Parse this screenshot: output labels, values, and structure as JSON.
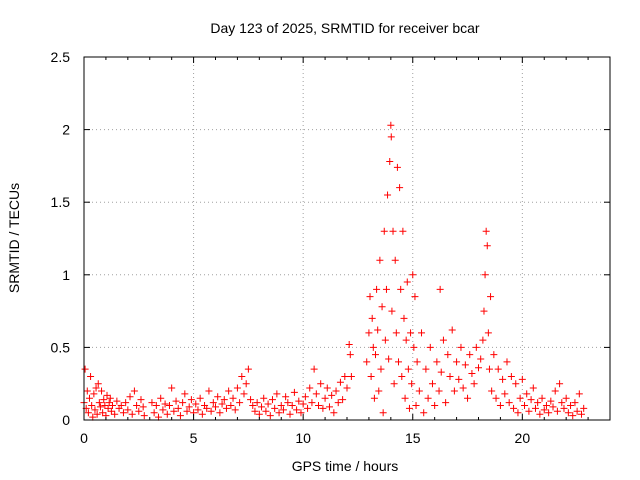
{
  "chart_data": {
    "type": "scatter",
    "title": "Day 123 of 2025, SRMTID for receiver bcar",
    "xlabel": "GPS time / hours",
    "ylabel": "SRMTID / TECUs",
    "xlim": [
      0,
      24
    ],
    "ylim": [
      0,
      2.5
    ],
    "x_ticks": [
      0,
      5,
      10,
      15,
      20
    ],
    "x_tick_labels": [
      "0",
      "5",
      "10",
      "15",
      "20"
    ],
    "y_ticks": [
      0,
      0.5,
      1,
      1.5,
      2,
      2.5
    ],
    "y_tick_labels": [
      "0",
      "0.5",
      "1",
      "1.5",
      "2",
      "2.5"
    ],
    "grid": true,
    "marker": "+",
    "color": "#ff0000",
    "series": [
      {
        "name": "SRMTID",
        "points": [
          [
            0.0,
            0.12
          ],
          [
            0.05,
            0.35
          ],
          [
            0.1,
            0.08
          ],
          [
            0.15,
            0.2
          ],
          [
            0.2,
            0.05
          ],
          [
            0.25,
            0.15
          ],
          [
            0.3,
            0.3
          ],
          [
            0.35,
            0.1
          ],
          [
            0.4,
            0.02
          ],
          [
            0.45,
            0.18
          ],
          [
            0.5,
            0.07
          ],
          [
            0.55,
            0.22
          ],
          [
            0.6,
            0.04
          ],
          [
            0.65,
            0.25
          ],
          [
            0.7,
            0.12
          ],
          [
            0.75,
            0.09
          ],
          [
            0.8,
            0.2
          ],
          [
            0.85,
            0.05
          ],
          [
            0.9,
            0.14
          ],
          [
            0.95,
            0.1
          ],
          [
            1.0,
            0.03
          ],
          [
            1.05,
            0.17
          ],
          [
            1.1,
            0.08
          ],
          [
            1.15,
            0.12
          ],
          [
            1.2,
            0.15
          ],
          [
            1.25,
            0.06
          ],
          [
            1.3,
            0.1
          ],
          [
            1.4,
            0.04
          ],
          [
            1.5,
            0.13
          ],
          [
            1.6,
            0.08
          ],
          [
            1.7,
            0.1
          ],
          [
            1.8,
            0.05
          ],
          [
            1.9,
            0.12
          ],
          [
            2.0,
            0.07
          ],
          [
            2.1,
            0.16
          ],
          [
            2.2,
            0.04
          ],
          [
            2.3,
            0.2
          ],
          [
            2.4,
            0.1
          ],
          [
            2.5,
            0.06
          ],
          [
            2.6,
            0.14
          ],
          [
            2.7,
            0.09
          ],
          [
            2.75,
            0.03
          ],
          [
            3.1,
            0.12
          ],
          [
            3.2,
            0.05
          ],
          [
            3.3,
            0.1
          ],
          [
            3.4,
            0.02
          ],
          [
            3.5,
            0.15
          ],
          [
            3.6,
            0.07
          ],
          [
            3.7,
            0.11
          ],
          [
            3.8,
            0.04
          ],
          [
            3.9,
            0.1
          ],
          [
            4.0,
            0.22
          ],
          [
            4.1,
            0.06
          ],
          [
            4.2,
            0.13
          ],
          [
            4.3,
            0.08
          ],
          [
            4.4,
            0.03
          ],
          [
            4.5,
            0.12
          ],
          [
            4.6,
            0.18
          ],
          [
            4.7,
            0.06
          ],
          [
            4.8,
            0.09
          ],
          [
            4.9,
            0.14
          ],
          [
            5.0,
            0.05
          ],
          [
            5.1,
            0.11
          ],
          [
            5.2,
            0.07
          ],
          [
            5.3,
            0.15
          ],
          [
            5.4,
            0.04
          ],
          [
            5.5,
            0.1
          ],
          [
            5.6,
            0.08
          ],
          [
            5.7,
            0.2
          ],
          [
            5.8,
            0.06
          ],
          [
            5.9,
            0.12
          ],
          [
            6.0,
            0.09
          ],
          [
            6.1,
            0.16
          ],
          [
            6.2,
            0.05
          ],
          [
            6.3,
            0.11
          ],
          [
            6.4,
            0.14
          ],
          [
            6.5,
            0.08
          ],
          [
            6.6,
            0.2
          ],
          [
            6.7,
            0.1
          ],
          [
            6.8,
            0.15
          ],
          [
            6.9,
            0.07
          ],
          [
            7.0,
            0.22
          ],
          [
            7.1,
            0.12
          ],
          [
            7.2,
            0.3
          ],
          [
            7.3,
            0.18
          ],
          [
            7.4,
            0.25
          ],
          [
            7.5,
            0.35
          ],
          [
            7.6,
            0.14
          ],
          [
            7.7,
            0.1
          ],
          [
            7.8,
            0.06
          ],
          [
            7.9,
            0.12
          ],
          [
            8.0,
            0.04
          ],
          [
            8.1,
            0.09
          ],
          [
            8.2,
            0.15
          ],
          [
            8.3,
            0.06
          ],
          [
            8.4,
            0.11
          ],
          [
            8.5,
            0.03
          ],
          [
            8.6,
            0.14
          ],
          [
            8.7,
            0.08
          ],
          [
            8.8,
            0.18
          ],
          [
            8.9,
            0.05
          ],
          [
            9.0,
            0.1
          ],
          [
            9.1,
            0.07
          ],
          [
            9.2,
            0.16
          ],
          [
            9.3,
            0.12
          ],
          [
            9.4,
            0.04
          ],
          [
            9.5,
            0.1
          ],
          [
            9.6,
            0.19
          ],
          [
            9.7,
            0.07
          ],
          [
            9.8,
            0.13
          ],
          [
            9.9,
            0.05
          ],
          [
            10.0,
            0.11
          ],
          [
            10.1,
            0.16
          ],
          [
            10.2,
            0.08
          ],
          [
            10.3,
            0.22
          ],
          [
            10.4,
            0.12
          ],
          [
            10.5,
            0.35
          ],
          [
            10.6,
            0.18
          ],
          [
            10.7,
            0.1
          ],
          [
            10.8,
            0.25
          ],
          [
            10.9,
            0.08
          ],
          [
            11.0,
            0.15
          ],
          [
            11.1,
            0.22
          ],
          [
            11.2,
            0.09
          ],
          [
            11.3,
            0.17
          ],
          [
            11.4,
            0.05
          ],
          [
            11.5,
            0.2
          ],
          [
            11.6,
            0.12
          ],
          [
            11.7,
            0.26
          ],
          [
            11.8,
            0.14
          ],
          [
            11.9,
            0.3
          ],
          [
            12.0,
            0.22
          ],
          [
            12.1,
            0.52
          ],
          [
            12.15,
            0.45
          ],
          [
            12.2,
            0.3
          ],
          [
            12.9,
            0.4
          ],
          [
            13.0,
            0.6
          ],
          [
            13.05,
            0.85
          ],
          [
            13.1,
            0.3
          ],
          [
            13.15,
            0.7
          ],
          [
            13.2,
            0.5
          ],
          [
            13.25,
            0.15
          ],
          [
            13.3,
            0.45
          ],
          [
            13.35,
            0.9
          ],
          [
            13.4,
            0.62
          ],
          [
            13.45,
            0.2
          ],
          [
            13.5,
            1.1
          ],
          [
            13.55,
            0.35
          ],
          [
            13.6,
            0.78
          ],
          [
            13.65,
            0.05
          ],
          [
            13.7,
            1.3
          ],
          [
            13.75,
            0.55
          ],
          [
            13.8,
            0.9
          ],
          [
            13.85,
            1.55
          ],
          [
            13.9,
            0.42
          ],
          [
            13.95,
            1.78
          ],
          [
            14.0,
            2.03
          ],
          [
            14.02,
            1.95
          ],
          [
            14.05,
            0.75
          ],
          [
            14.1,
            1.3
          ],
          [
            14.15,
            0.25
          ],
          [
            14.2,
            1.1
          ],
          [
            14.25,
            0.6
          ],
          [
            14.3,
            1.74
          ],
          [
            14.35,
            0.4
          ],
          [
            14.4,
            1.6
          ],
          [
            14.45,
            0.9
          ],
          [
            14.5,
            0.3
          ],
          [
            14.55,
            1.3
          ],
          [
            14.6,
            0.7
          ],
          [
            14.65,
            0.15
          ],
          [
            14.7,
            0.55
          ],
          [
            14.75,
            0.95
          ],
          [
            14.8,
            0.35
          ],
          [
            14.85,
            0.08
          ],
          [
            14.9,
            0.6
          ],
          [
            14.95,
            0.25
          ],
          [
            15.0,
            1.0
          ],
          [
            15.05,
            0.5
          ],
          [
            15.1,
            0.85
          ],
          [
            15.15,
            0.1
          ],
          [
            15.2,
            0.4
          ],
          [
            15.3,
            0.2
          ],
          [
            15.4,
            0.6
          ],
          [
            15.5,
            0.05
          ],
          [
            15.6,
            0.35
          ],
          [
            15.7,
            0.15
          ],
          [
            15.8,
            0.5
          ],
          [
            15.9,
            0.25
          ],
          [
            16.0,
            0.1
          ],
          [
            16.1,
            0.4
          ],
          [
            16.2,
            0.2
          ],
          [
            16.25,
            0.9
          ],
          [
            16.3,
            0.33
          ],
          [
            16.4,
            0.55
          ],
          [
            16.5,
            0.12
          ],
          [
            16.6,
            0.45
          ],
          [
            16.7,
            0.3
          ],
          [
            16.8,
            0.62
          ],
          [
            16.9,
            0.2
          ],
          [
            17.0,
            0.4
          ],
          [
            17.1,
            0.28
          ],
          [
            17.2,
            0.5
          ],
          [
            17.3,
            0.22
          ],
          [
            17.4,
            0.38
          ],
          [
            17.5,
            0.15
          ],
          [
            17.6,
            0.45
          ],
          [
            17.7,
            0.32
          ],
          [
            17.8,
            0.25
          ],
          [
            17.9,
            0.5
          ],
          [
            18.0,
            0.36
          ],
          [
            18.1,
            0.42
          ],
          [
            18.2,
            0.55
          ],
          [
            18.25,
            0.75
          ],
          [
            18.3,
            1.0
          ],
          [
            18.35,
            1.3
          ],
          [
            18.4,
            1.2
          ],
          [
            18.45,
            0.6
          ],
          [
            18.5,
            0.35
          ],
          [
            18.55,
            0.85
          ],
          [
            18.6,
            0.2
          ],
          [
            18.7,
            0.45
          ],
          [
            18.8,
            0.15
          ],
          [
            18.9,
            0.35
          ],
          [
            19.0,
            0.1
          ],
          [
            19.1,
            0.28
          ],
          [
            19.2,
            0.18
          ],
          [
            19.3,
            0.4
          ],
          [
            19.4,
            0.12
          ],
          [
            19.5,
            0.3
          ],
          [
            19.6,
            0.08
          ],
          [
            19.7,
            0.25
          ],
          [
            19.8,
            0.05
          ],
          [
            19.9,
            0.15
          ],
          [
            20.0,
            0.28
          ],
          [
            20.1,
            0.1
          ],
          [
            20.2,
            0.18
          ],
          [
            20.3,
            0.06
          ],
          [
            20.4,
            0.14
          ],
          [
            20.5,
            0.22
          ],
          [
            20.6,
            0.08
          ],
          [
            20.7,
            0.12
          ],
          [
            20.8,
            0.04
          ],
          [
            20.9,
            0.15
          ],
          [
            21.0,
            0.07
          ],
          [
            21.1,
            0.1
          ],
          [
            21.2,
            0.05
          ],
          [
            21.3,
            0.13
          ],
          [
            21.4,
            0.09
          ],
          [
            21.5,
            0.2
          ],
          [
            21.6,
            0.06
          ],
          [
            21.7,
            0.25
          ],
          [
            21.8,
            0.12
          ],
          [
            21.9,
            0.08
          ],
          [
            22.0,
            0.15
          ],
          [
            22.1,
            0.05
          ],
          [
            22.2,
            0.1
          ],
          [
            22.3,
            0.03
          ],
          [
            22.4,
            0.12
          ],
          [
            22.5,
            0.06
          ],
          [
            22.6,
            0.18
          ],
          [
            22.7,
            0.04
          ],
          [
            22.8,
            0.08
          ]
        ]
      }
    ]
  }
}
